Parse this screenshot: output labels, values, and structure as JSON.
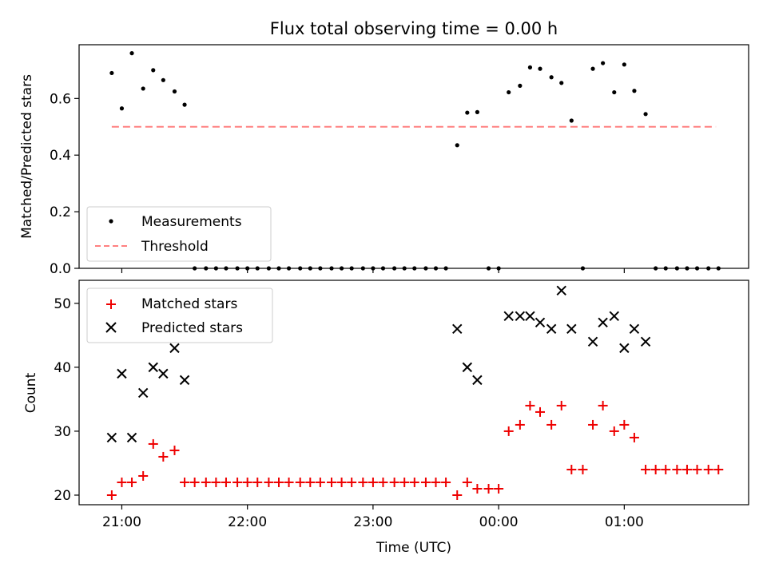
{
  "title": "Flux total observing time = 0.00 h",
  "chart_data": [
    {
      "type": "scatter",
      "panel": "top",
      "ylabel": "Matched/Predicted stars",
      "ylim": [
        0,
        0.79
      ],
      "yticks": [
        {
          "value": 0.0,
          "label": "0.0"
        },
        {
          "value": 0.2,
          "label": "0.2"
        },
        {
          "value": 0.4,
          "label": "0.4"
        },
        {
          "value": 0.6,
          "label": "0.6"
        }
      ],
      "legend": {
        "position": "lower-left",
        "entries": [
          {
            "label": "Measurements",
            "marker": "dot",
            "color": "#000000"
          },
          {
            "label": "Threshold",
            "marker": "dashed-line",
            "color": "#ff8080"
          }
        ]
      },
      "threshold": {
        "value": 0.5,
        "x_start": 20.92,
        "x_end": 25.73,
        "color": "#ff8080"
      },
      "measurements": [
        [
          20.92,
          0.69
        ],
        [
          21.0,
          0.565
        ],
        [
          21.08,
          0.76
        ],
        [
          21.17,
          0.635
        ],
        [
          21.25,
          0.7
        ],
        [
          21.33,
          0.665
        ],
        [
          21.42,
          0.625
        ],
        [
          21.5,
          0.578
        ],
        [
          21.58,
          0.0
        ],
        [
          21.67,
          0.0
        ],
        [
          21.75,
          0.0
        ],
        [
          21.83,
          0.0
        ],
        [
          21.92,
          0.0
        ],
        [
          22.0,
          0.0
        ],
        [
          22.08,
          0.0
        ],
        [
          22.17,
          0.0
        ],
        [
          22.25,
          0.0
        ],
        [
          22.33,
          0.0
        ],
        [
          22.42,
          0.0
        ],
        [
          22.5,
          0.0
        ],
        [
          22.58,
          0.0
        ],
        [
          22.67,
          0.0
        ],
        [
          22.75,
          0.0
        ],
        [
          22.83,
          0.0
        ],
        [
          22.92,
          0.0
        ],
        [
          23.0,
          0.0
        ],
        [
          23.08,
          0.0
        ],
        [
          23.17,
          0.0
        ],
        [
          23.25,
          0.0
        ],
        [
          23.33,
          0.0
        ],
        [
          23.42,
          0.0
        ],
        [
          23.5,
          0.0
        ],
        [
          23.58,
          0.0
        ],
        [
          23.67,
          0.435
        ],
        [
          23.75,
          0.55
        ],
        [
          23.83,
          0.552
        ],
        [
          23.92,
          0.0
        ],
        [
          24.0,
          0.0
        ],
        [
          24.08,
          0.622
        ],
        [
          24.17,
          0.645
        ],
        [
          24.25,
          0.71
        ],
        [
          24.33,
          0.705
        ],
        [
          24.42,
          0.675
        ],
        [
          24.5,
          0.655
        ],
        [
          24.58,
          0.522
        ],
        [
          24.67,
          0.0
        ],
        [
          24.75,
          0.705
        ],
        [
          24.83,
          0.725
        ],
        [
          24.92,
          0.622
        ],
        [
          25.0,
          0.72
        ],
        [
          25.08,
          0.627
        ],
        [
          25.17,
          0.545
        ],
        [
          25.25,
          0.0
        ],
        [
          25.33,
          0.0
        ],
        [
          25.42,
          0.0
        ],
        [
          25.5,
          0.0
        ],
        [
          25.58,
          0.0
        ],
        [
          25.67,
          0.0
        ],
        [
          25.75,
          0.0
        ]
      ]
    },
    {
      "type": "scatter",
      "panel": "bottom",
      "ylabel": "Count",
      "xlabel": "Time (UTC)",
      "xlim": [
        20.66,
        25.99
      ],
      "ylim": [
        18.5,
        53.6
      ],
      "xticks": [
        {
          "value": 21,
          "label": "21:00"
        },
        {
          "value": 22,
          "label": "22:00"
        },
        {
          "value": 23,
          "label": "23:00"
        },
        {
          "value": 24,
          "label": "00:00"
        },
        {
          "value": 25,
          "label": "01:00"
        }
      ],
      "yticks": [
        {
          "value": 20,
          "label": "20"
        },
        {
          "value": 30,
          "label": "30"
        },
        {
          "value": 40,
          "label": "40"
        },
        {
          "value": 50,
          "label": "50"
        }
      ],
      "legend": {
        "position": "upper-left",
        "entries": [
          {
            "label": "Matched stars",
            "marker": "plus",
            "color": "#ee0000"
          },
          {
            "label": "Predicted stars",
            "marker": "x",
            "color": "#000000"
          }
        ]
      },
      "matched": [
        [
          20.92,
          20
        ],
        [
          21.0,
          22
        ],
        [
          21.08,
          22
        ],
        [
          21.17,
          23
        ],
        [
          21.25,
          28
        ],
        [
          21.33,
          26
        ],
        [
          21.42,
          27
        ],
        [
          21.5,
          22
        ],
        [
          21.58,
          22
        ],
        [
          21.67,
          22
        ],
        [
          21.75,
          22
        ],
        [
          21.83,
          22
        ],
        [
          21.92,
          22
        ],
        [
          22.0,
          22
        ],
        [
          22.08,
          22
        ],
        [
          22.17,
          22
        ],
        [
          22.25,
          22
        ],
        [
          22.33,
          22
        ],
        [
          22.42,
          22
        ],
        [
          22.5,
          22
        ],
        [
          22.58,
          22
        ],
        [
          22.67,
          22
        ],
        [
          22.75,
          22
        ],
        [
          22.83,
          22
        ],
        [
          22.92,
          22
        ],
        [
          23.0,
          22
        ],
        [
          23.08,
          22
        ],
        [
          23.17,
          22
        ],
        [
          23.25,
          22
        ],
        [
          23.33,
          22
        ],
        [
          23.42,
          22
        ],
        [
          23.5,
          22
        ],
        [
          23.58,
          22
        ],
        [
          23.67,
          20
        ],
        [
          23.75,
          22
        ],
        [
          23.83,
          21
        ],
        [
          23.92,
          21
        ],
        [
          24.0,
          21
        ],
        [
          24.08,
          30
        ],
        [
          24.17,
          31
        ],
        [
          24.25,
          34
        ],
        [
          24.33,
          33
        ],
        [
          24.42,
          31
        ],
        [
          24.5,
          34
        ],
        [
          24.58,
          24
        ],
        [
          24.67,
          24
        ],
        [
          24.75,
          31
        ],
        [
          24.83,
          34
        ],
        [
          24.92,
          30
        ],
        [
          25.0,
          31
        ],
        [
          25.08,
          29
        ],
        [
          25.17,
          24
        ],
        [
          25.25,
          24
        ],
        [
          25.33,
          24
        ],
        [
          25.42,
          24
        ],
        [
          25.5,
          24
        ],
        [
          25.58,
          24
        ],
        [
          25.67,
          24
        ],
        [
          25.75,
          24
        ]
      ],
      "predicted": [
        [
          20.92,
          29
        ],
        [
          21.0,
          39
        ],
        [
          21.08,
          29
        ],
        [
          21.17,
          36
        ],
        [
          21.25,
          40
        ],
        [
          21.33,
          39
        ],
        [
          21.42,
          43
        ],
        [
          21.5,
          38
        ],
        [
          23.67,
          46
        ],
        [
          23.75,
          40
        ],
        [
          23.83,
          38
        ],
        [
          24.08,
          48
        ],
        [
          24.17,
          48
        ],
        [
          24.25,
          48
        ],
        [
          24.33,
          47
        ],
        [
          24.42,
          46
        ],
        [
          24.5,
          52
        ],
        [
          24.58,
          46
        ],
        [
          24.75,
          44
        ],
        [
          24.83,
          47
        ],
        [
          24.92,
          48
        ],
        [
          25.0,
          43
        ],
        [
          25.08,
          46
        ],
        [
          25.17,
          44
        ]
      ]
    }
  ]
}
